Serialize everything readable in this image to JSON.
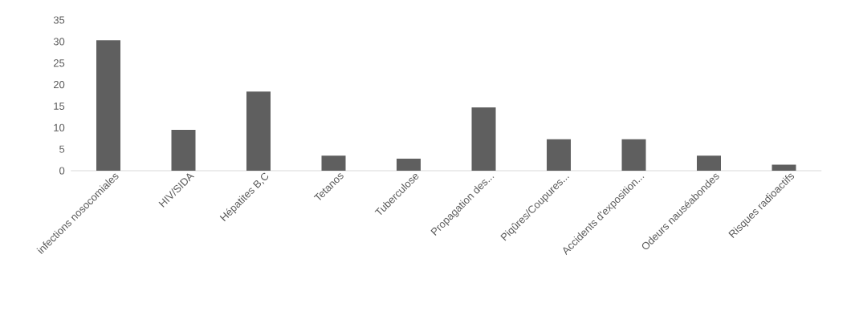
{
  "chart_data": {
    "type": "bar",
    "categories": [
      "infections nosocomiales",
      "HIV/SIDA",
      "Hépatites B,C",
      "Tetanos",
      "Tuberculose",
      "Propagation des...",
      "Piqûres/Coupures...",
      "Accidents d'exposition...",
      "Odeurs nauséabondes",
      "Risques radioactifs"
    ],
    "values": [
      30.3,
      9.5,
      18.4,
      3.5,
      2.8,
      14.7,
      7.3,
      7.3,
      3.5,
      1.4
    ],
    "color": "#5f5f5f",
    "ylim": [
      0,
      35
    ],
    "yticks": [
      0,
      5,
      10,
      15,
      20,
      25,
      30,
      35
    ]
  }
}
